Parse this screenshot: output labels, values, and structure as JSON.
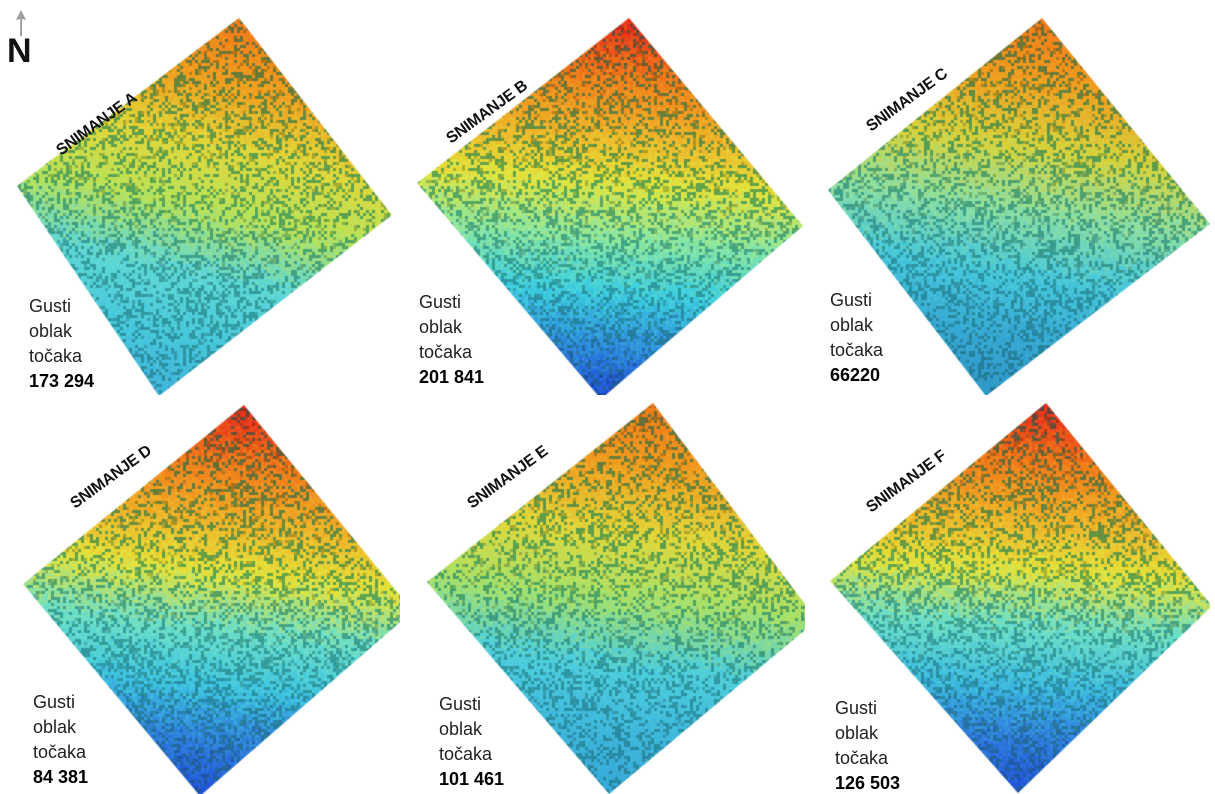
{
  "north_label": "N",
  "panels": [
    {
      "id": "A",
      "title": "SNIMANJE A",
      "desc": "Gusti oblak točaka",
      "count": "173 294",
      "gradient": [
        "#f07a1a",
        "#f0a020",
        "#e2d83a",
        "#b9e35a",
        "#5fd8d6",
        "#48c9dc",
        "#3fb3db"
      ]
    },
    {
      "id": "B",
      "title": "SNIMANJE B",
      "desc": "Gusti oblak točaka",
      "count": "201 841",
      "gradient": [
        "#e8291c",
        "#f07a1a",
        "#f0b128",
        "#e4e43c",
        "#8ee8a0",
        "#3fd0e0",
        "#2f8fdc",
        "#1f49d8"
      ]
    },
    {
      "id": "C",
      "title": "SNIMANJE C",
      "desc": "Gusti oblak točaka",
      "count": "66220",
      "gradient": [
        "#f07a1a",
        "#f0a020",
        "#d8d43c",
        "#8fe0a0",
        "#48c9dc",
        "#37a9d4",
        "#2f96c8"
      ]
    },
    {
      "id": "D",
      "title": "SNIMANJE D",
      "desc": "Gusti oblak točaka",
      "count": "84 381",
      "gradient": [
        "#e8291c",
        "#f07a1a",
        "#f0b128",
        "#e4e43c",
        "#6ee0c8",
        "#3fc6e0",
        "#2f7fdc",
        "#2050d8"
      ]
    },
    {
      "id": "E",
      "title": "SNIMANJE E",
      "desc": "Gusti oblak točaka",
      "count": "101 461",
      "gradient": [
        "#f07a1a",
        "#f0a020",
        "#e2d83a",
        "#a8e26a",
        "#4fd0dc",
        "#3fb8dc",
        "#36a8d8"
      ]
    },
    {
      "id": "F",
      "title": "SNIMANJE F",
      "desc": "Gusti oblak točaka",
      "count": "126 503",
      "gradient": [
        "#e8291c",
        "#f07a1a",
        "#f0b128",
        "#e4e43c",
        "#6ee0c8",
        "#3fbfe0",
        "#2f7fdc",
        "#2050d8"
      ]
    }
  ]
}
